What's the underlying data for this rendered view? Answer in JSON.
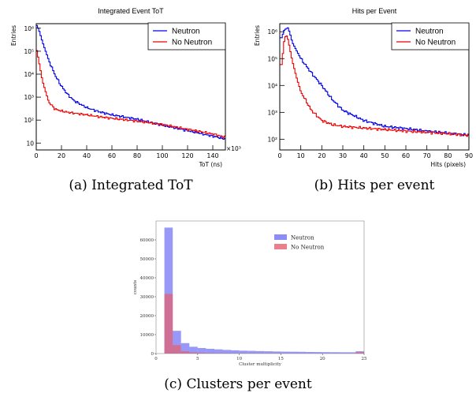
{
  "chart_data": [
    {
      "type": "line",
      "title": "Integrated Event ToT",
      "xlabel": "ToT (ns)",
      "ylabel": "Entries",
      "x_multiplier_label": "×10³",
      "xlim": [
        0,
        150
      ],
      "ylim_log10": [
        0.7,
        6.2
      ],
      "yscale": "log",
      "x_ticks": [
        0,
        20,
        40,
        60,
        80,
        100,
        120,
        140
      ],
      "y_ticks": [
        {
          "label": "10",
          "value": 10
        },
        {
          "label": "10²",
          "value": 100
        },
        {
          "label": "10³",
          "value": 1000
        },
        {
          "label": "10⁴",
          "value": 10000
        },
        {
          "label": "10⁵",
          "value": 100000
        },
        {
          "label": "10⁶",
          "value": 1000000
        }
      ],
      "legend": "top-right",
      "series": [
        {
          "name": "Neutron",
          "color": "#0000ee",
          "x": [
            0,
            2,
            5,
            10,
            15,
            20,
            25,
            30,
            40,
            50,
            60,
            80,
            100,
            120,
            140,
            150
          ],
          "y": [
            1500000,
            900000,
            250000,
            40000,
            9000,
            3000,
            1300,
            700,
            350,
            230,
            170,
            110,
            60,
            35,
            20,
            15
          ]
        },
        {
          "name": "No Neutron",
          "color": "#ee0000",
          "x": [
            0,
            2,
            5,
            10,
            15,
            20,
            25,
            30,
            40,
            50,
            60,
            80,
            100,
            120,
            140,
            150
          ],
          "y": [
            150000,
            40000,
            5000,
            600,
            300,
            250,
            220,
            200,
            170,
            140,
            120,
            90,
            65,
            40,
            25,
            18
          ]
        }
      ],
      "caption": "(a)  Integrated ToT"
    },
    {
      "type": "line",
      "title": "Hits per Event",
      "xlabel": "Hits (pixels)",
      "ylabel": "Entries",
      "xlim": [
        0,
        90
      ],
      "ylim_log10": [
        1.6,
        6.3
      ],
      "yscale": "log",
      "x_ticks": [
        0,
        10,
        20,
        30,
        40,
        50,
        60,
        70,
        80,
        90
      ],
      "y_ticks": [
        {
          "label": "10²",
          "value": 100
        },
        {
          "label": "10³",
          "value": 1000
        },
        {
          "label": "10⁴",
          "value": 10000
        },
        {
          "label": "10⁵",
          "value": 100000
        },
        {
          "label": "10⁶",
          "value": 1000000
        }
      ],
      "legend": "top-right",
      "series": [
        {
          "name": "Neutron",
          "color": "#0000ee",
          "x": [
            1,
            2,
            3,
            4,
            5,
            6,
            8,
            10,
            15,
            20,
            25,
            30,
            40,
            50,
            60,
            70,
            80,
            90
          ],
          "y": [
            600000,
            1100000,
            1300000,
            1400000,
            800000,
            400000,
            200000,
            100000,
            30000,
            10000,
            3000,
            1200,
            500,
            300,
            250,
            200,
            170,
            140
          ]
        },
        {
          "name": "No Neutron",
          "color": "#ee0000",
          "x": [
            1,
            2,
            3,
            4,
            5,
            6,
            8,
            10,
            15,
            20,
            25,
            30,
            40,
            50,
            60,
            70,
            80,
            90
          ],
          "y": [
            60000,
            400000,
            800000,
            500000,
            200000,
            80000,
            20000,
            6000,
            1200,
            500,
            350,
            300,
            260,
            230,
            200,
            180,
            160,
            140
          ]
        }
      ],
      "caption": "(b)  Hits per event"
    },
    {
      "type": "bar",
      "title": "",
      "xlabel": "Cluster multiplicity",
      "ylabel": "counts",
      "xlim": [
        0,
        25
      ],
      "ylim": [
        0,
        70000
      ],
      "x_ticks": [
        0,
        5,
        10,
        15,
        20,
        25
      ],
      "y_ticks": [
        0,
        10000,
        20000,
        30000,
        40000,
        50000,
        60000
      ],
      "legend": "top-right",
      "bin_edges": [
        1,
        2,
        3,
        4,
        5,
        6,
        7,
        8,
        9,
        10,
        11,
        12,
        13,
        14,
        15,
        16,
        17,
        18,
        19,
        20,
        21,
        22,
        23,
        24,
        25
      ],
      "series": [
        {
          "name": "Neutron",
          "color": "#7070f5",
          "values": [
            66500,
            12000,
            5500,
            3600,
            2900,
            2500,
            2200,
            1900,
            1700,
            1500,
            1400,
            1300,
            1200,
            1100,
            1000,
            950,
            900,
            850,
            800,
            750,
            700,
            680,
            660,
            1200
          ]
        },
        {
          "name": "No Neutron",
          "color": "#e66070",
          "values": [
            31500,
            4500,
            1200,
            600,
            400,
            300,
            250,
            200,
            180,
            160,
            150,
            140,
            130,
            120,
            110,
            100,
            100,
            90,
            90,
            80,
            80,
            80,
            80,
            700
          ]
        }
      ],
      "caption": "(c)  Clusters per event"
    }
  ]
}
